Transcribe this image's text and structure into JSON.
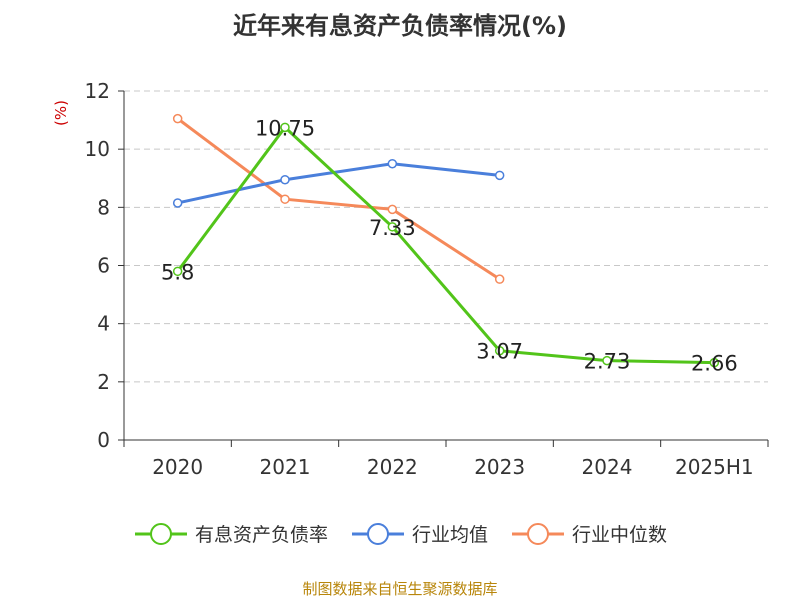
{
  "chart_data": {
    "type": "line",
    "title": "近年来有息资产负债率情况(%)",
    "ylabel": "(%)",
    "xlabel": "",
    "ylim": [
      0,
      12
    ],
    "yticks": [
      0,
      2,
      4,
      6,
      8,
      10,
      12
    ],
    "grid": true,
    "legend_position": "bottom",
    "categories": [
      "2020",
      "2021",
      "2022",
      "2023",
      "2024",
      "2025H1"
    ],
    "series": [
      {
        "name": "有息资产负债率",
        "color": "#52c41a",
        "values": [
          5.8,
          10.75,
          7.33,
          3.07,
          2.73,
          2.66
        ],
        "labels": [
          "5.8",
          "10.75",
          "7.33",
          "3.07",
          "2.73",
          "2.66"
        ],
        "show_labels": true
      },
      {
        "name": "行业均值",
        "color": "#4a7fdb",
        "values": [
          8.15,
          8.95,
          9.5,
          9.1,
          null,
          null
        ],
        "show_labels": false
      },
      {
        "name": "行业中位数",
        "color": "#f5895a",
        "values": [
          11.05,
          8.28,
          7.93,
          5.53,
          null,
          null
        ],
        "show_labels": false
      }
    ]
  },
  "footer": {
    "source": "制图数据来自恒生聚源数据库"
  }
}
